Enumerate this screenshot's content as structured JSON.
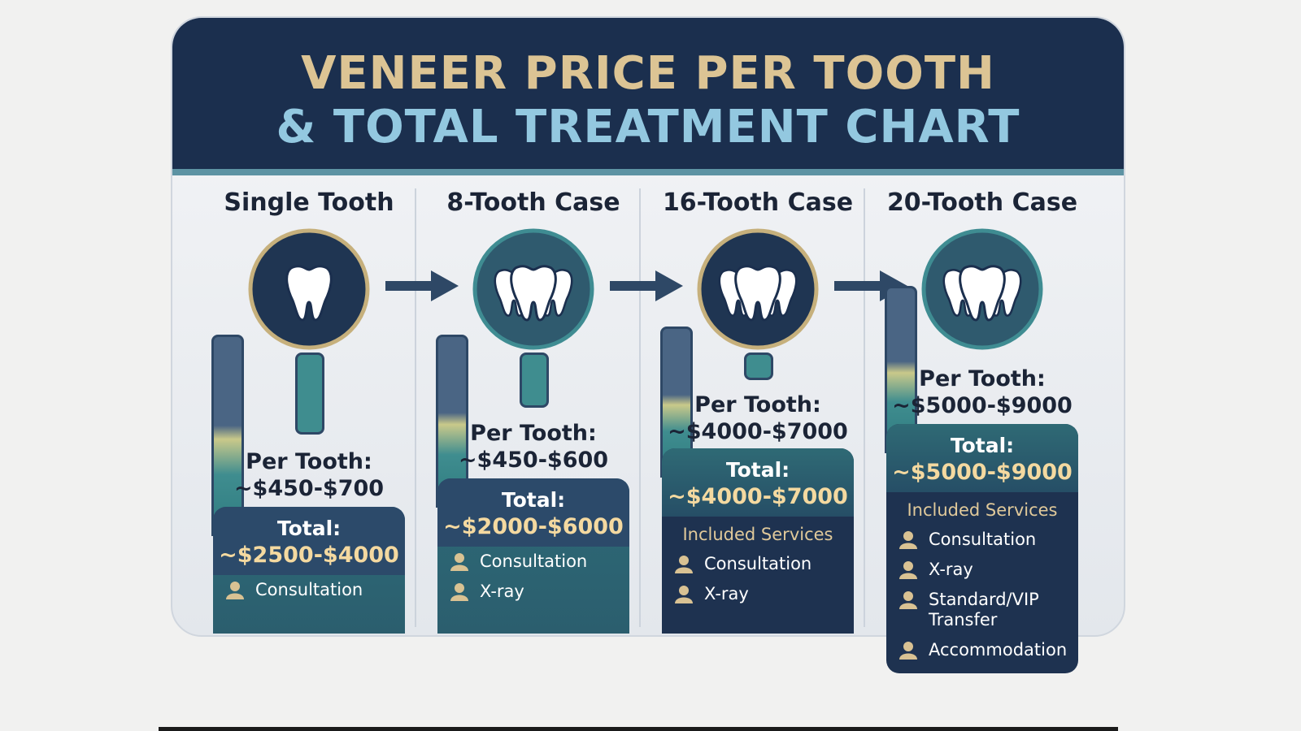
{
  "title": {
    "line1": "VENEER PRICE PER TOOTH",
    "line2": "& TOTAL TREATMENT CHART"
  },
  "columns": [
    {
      "name": "Single Tooth",
      "per_tooth_label": "Per Tooth:",
      "per_tooth": "~$450-$700",
      "total_label": "Total:",
      "total": "~$2500-$4000",
      "services": [
        "Consultation"
      ]
    },
    {
      "name": "8-Tooth Case",
      "per_tooth_label": "Per Tooth:",
      "per_tooth": "~$450-$600",
      "total_label": "Total:",
      "total": "~$2000-$6000",
      "services": [
        "Consultation",
        "X-ray"
      ]
    },
    {
      "name": "16-Tooth Case",
      "per_tooth_label": "Per Tooth:",
      "per_tooth": "~$4000-$7000",
      "total_label": "Total:",
      "total": "~$4000-$7000",
      "services_heading": "Included Services",
      "services": [
        "Consultation",
        "X-ray"
      ]
    },
    {
      "name": "20-Tooth Case",
      "per_tooth_label": "Per Tooth:",
      "per_tooth": "~$5000-$9000",
      "total_label": "Total:",
      "total": "~$5000-$9000",
      "services_heading": "Included Services",
      "services": [
        "Consultation",
        "X-ray",
        "Standard/VIP Transfer",
        "Accommodation"
      ]
    }
  ]
}
